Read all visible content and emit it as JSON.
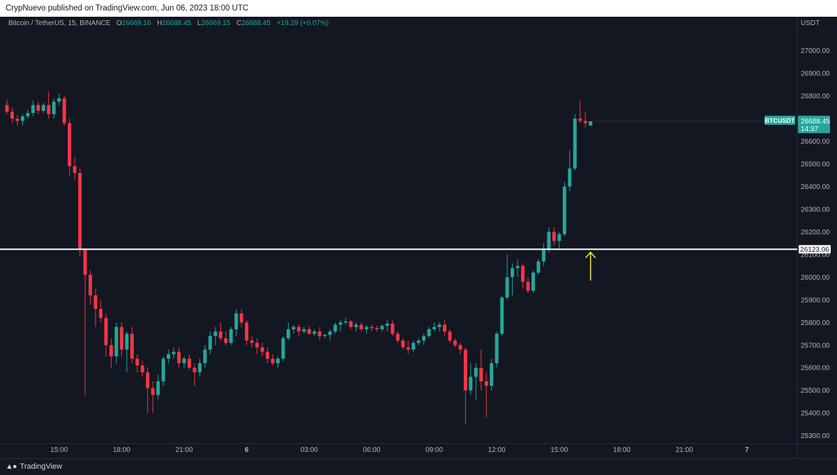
{
  "header": {
    "published_text": "CrypNuevo published on TradingView.com, Jun 06, 2023 18:00 UTC"
  },
  "legend": {
    "symbol": "Bitcoin / TetherUS, 15, BINANCE",
    "o_label": "O",
    "o_value": "26669.16",
    "h_label": "H",
    "h_value": "26688.45",
    "l_label": "L",
    "l_value": "26669.15",
    "c_label": "C",
    "c_value": "26688.45",
    "change": "+19.29 (+0.07%)"
  },
  "axis": {
    "currency": "USDT"
  },
  "colors": {
    "background": "#131722",
    "up": "#26a69a",
    "down": "#f23645",
    "horizontal_line": "#ffffff",
    "arrow": "#ffeb3b",
    "axis_text": "#b2b5be"
  },
  "chart_data": {
    "type": "candlestick",
    "ylim": [
      25265,
      27150
    ],
    "y_ticks": [
      "27000.00",
      "26900.00",
      "26800.00",
      "26700.00",
      "26600.00",
      "26500.00",
      "26400.00",
      "26300.00",
      "26200.00",
      "26100.00",
      "26000.00",
      "25900.00",
      "25800.00",
      "25700.00",
      "25600.00",
      "25500.00",
      "25400.00",
      "25300.00"
    ],
    "x_ticks": [
      {
        "label": "15:00",
        "index": 10
      },
      {
        "label": "18:00",
        "index": 22
      },
      {
        "label": "21:00",
        "index": 34
      },
      {
        "label": "6",
        "index": 46
      },
      {
        "label": "03:00",
        "index": 58
      },
      {
        "label": "06:00",
        "index": 70
      },
      {
        "label": "09:00",
        "index": 82
      },
      {
        "label": "12:00",
        "index": 94
      },
      {
        "label": "15:00",
        "index": 106
      },
      {
        "label": "18:00",
        "index": 118
      },
      {
        "label": "21:00",
        "index": 130
      },
      {
        "label": "7",
        "index": 142
      }
    ],
    "horizontal_line": {
      "value": 26123.06,
      "label": "26123.06"
    },
    "last_price": {
      "symbol": "BTCUSDT",
      "value": "26688.45",
      "countdown": "14:37",
      "y": 26688.45
    },
    "arrow_annotation": {
      "index": 112,
      "from": 25985,
      "to": 26110
    },
    "candles": [
      [
        26760,
        26785,
        26720,
        26730
      ],
      [
        26730,
        26750,
        26680,
        26700
      ],
      [
        26700,
        26715,
        26670,
        26690
      ],
      [
        26690,
        26720,
        26670,
        26710
      ],
      [
        26710,
        26740,
        26700,
        26725
      ],
      [
        26725,
        26780,
        26710,
        26760
      ],
      [
        26760,
        26775,
        26720,
        26735
      ],
      [
        26735,
        26770,
        26725,
        26760
      ],
      [
        26760,
        26820,
        26700,
        26720
      ],
      [
        26720,
        26790,
        26700,
        26775
      ],
      [
        26775,
        26810,
        26760,
        26790
      ],
      [
        26790,
        26800,
        26670,
        26680
      ],
      [
        26680,
        26700,
        26450,
        26490
      ],
      [
        26490,
        26530,
        26430,
        26460
      ],
      [
        26460,
        26480,
        26090,
        26120
      ],
      [
        26120,
        26130,
        25480,
        26010
      ],
      [
        26010,
        26030,
        25880,
        25920
      ],
      [
        25920,
        25950,
        25780,
        25860
      ],
      [
        25860,
        25900,
        25800,
        25820
      ],
      [
        25820,
        25840,
        25650,
        25700
      ],
      [
        25700,
        25730,
        25600,
        25650
      ],
      [
        25650,
        25800,
        25620,
        25780
      ],
      [
        25780,
        25800,
        25650,
        25680
      ],
      [
        25680,
        25760,
        25580,
        25750
      ],
      [
        25750,
        25780,
        25620,
        25640
      ],
      [
        25640,
        25660,
        25580,
        25610
      ],
      [
        25610,
        25630,
        25560,
        25580
      ],
      [
        25580,
        25600,
        25400,
        25510
      ],
      [
        25510,
        25540,
        25400,
        25480
      ],
      [
        25480,
        25570,
        25460,
        25540
      ],
      [
        25540,
        25650,
        25520,
        25640
      ],
      [
        25640,
        25680,
        25620,
        25660
      ],
      [
        25660,
        25690,
        25640,
        25670
      ],
      [
        25670,
        25690,
        25600,
        25620
      ],
      [
        25620,
        25650,
        25600,
        25640
      ],
      [
        25640,
        25660,
        25590,
        25600
      ],
      [
        25600,
        25620,
        25520,
        25580
      ],
      [
        25580,
        25640,
        25560,
        25620
      ],
      [
        25620,
        25700,
        25600,
        25680
      ],
      [
        25680,
        25760,
        25660,
        25740
      ],
      [
        25740,
        25780,
        25700,
        25760
      ],
      [
        25760,
        25800,
        25720,
        25730
      ],
      [
        25730,
        25760,
        25700,
        25710
      ],
      [
        25710,
        25780,
        25700,
        25770
      ],
      [
        25770,
        25860,
        25740,
        25840
      ],
      [
        25840,
        25860,
        25780,
        25800
      ],
      [
        25800,
        25810,
        25700,
        25720
      ],
      [
        25720,
        25740,
        25690,
        25710
      ],
      [
        25710,
        25730,
        25660,
        25690
      ],
      [
        25690,
        25710,
        25650,
        25670
      ],
      [
        25670,
        25690,
        25620,
        25640
      ],
      [
        25640,
        25660,
        25610,
        25620
      ],
      [
        25620,
        25650,
        25600,
        25640
      ],
      [
        25640,
        25740,
        25630,
        25730
      ],
      [
        25730,
        25800,
        25720,
        25770
      ],
      [
        25770,
        25790,
        25750,
        25780
      ],
      [
        25780,
        25790,
        25740,
        25760
      ],
      [
        25760,
        25780,
        25750,
        25770
      ],
      [
        25770,
        25785,
        25745,
        25750
      ],
      [
        25750,
        25770,
        25740,
        25760
      ],
      [
        25760,
        25780,
        25720,
        25740
      ],
      [
        25740,
        25750,
        25730,
        25745
      ],
      [
        25745,
        25770,
        25720,
        25760
      ],
      [
        25760,
        25800,
        25750,
        25790
      ],
      [
        25790,
        25810,
        25760,
        25800
      ],
      [
        25800,
        25820,
        25790,
        25805
      ],
      [
        25805,
        25810,
        25770,
        25780
      ],
      [
        25780,
        25800,
        25760,
        25790
      ],
      [
        25790,
        25800,
        25760,
        25770
      ],
      [
        25770,
        25790,
        25750,
        25780
      ],
      [
        25780,
        25790,
        25760,
        25775
      ],
      [
        25775,
        25785,
        25760,
        25770
      ],
      [
        25770,
        25790,
        25760,
        25785
      ],
      [
        25785,
        25810,
        25760,
        25795
      ],
      [
        25795,
        25810,
        25740,
        25750
      ],
      [
        25750,
        25760,
        25710,
        25720
      ],
      [
        25720,
        25730,
        25680,
        25690
      ],
      [
        25690,
        25720,
        25660,
        25680
      ],
      [
        25680,
        25720,
        25670,
        25710
      ],
      [
        25710,
        25730,
        25700,
        25720
      ],
      [
        25720,
        25750,
        25700,
        25740
      ],
      [
        25740,
        25780,
        25730,
        25770
      ],
      [
        25770,
        25800,
        25760,
        25780
      ],
      [
        25780,
        25800,
        25760,
        25790
      ],
      [
        25790,
        25810,
        25740,
        25760
      ],
      [
        25760,
        25770,
        25710,
        25720
      ],
      [
        25720,
        25730,
        25690,
        25700
      ],
      [
        25700,
        25710,
        25660,
        25680
      ],
      [
        25680,
        25690,
        25350,
        25500
      ],
      [
        25500,
        25620,
        25480,
        25560
      ],
      [
        25560,
        25620,
        25460,
        25600
      ],
      [
        25600,
        25680,
        25500,
        25540
      ],
      [
        25540,
        25580,
        25380,
        25520
      ],
      [
        25520,
        25640,
        25500,
        25620
      ],
      [
        25620,
        25760,
        25600,
        25750
      ],
      [
        25750,
        25920,
        25740,
        25910
      ],
      [
        25910,
        26100,
        25900,
        26000
      ],
      [
        26000,
        26060,
        25920,
        26040
      ],
      [
        26040,
        26080,
        26000,
        26050
      ],
      [
        26050,
        26060,
        25950,
        25980
      ],
      [
        25980,
        26000,
        25930,
        25940
      ],
      [
        25940,
        26030,
        25930,
        26020
      ],
      [
        26020,
        26080,
        26010,
        26070
      ],
      [
        26070,
        26150,
        26050,
        26120
      ],
      [
        26120,
        26220,
        26110,
        26200
      ],
      [
        26200,
        26220,
        26140,
        26160
      ],
      [
        26160,
        26200,
        26120,
        26190
      ],
      [
        26190,
        26420,
        26180,
        26400
      ],
      [
        26400,
        26560,
        26380,
        26480
      ],
      [
        26480,
        26720,
        26470,
        26700
      ],
      [
        26700,
        26780,
        26680,
        26690
      ],
      [
        26690,
        26730,
        26660,
        26680
      ],
      [
        26669.16,
        26688.45,
        26669.15,
        26688.45
      ]
    ]
  }
}
